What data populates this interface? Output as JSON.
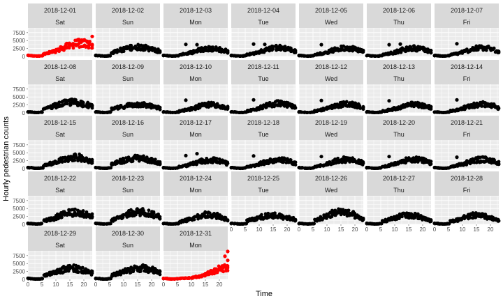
{
  "chart_data": {
    "type": "scatter",
    "xlabel": "Time",
    "ylabel": "Hourly pedestrian counts",
    "xlim": [
      0,
      23
    ],
    "ylim": [
      0,
      9000
    ],
    "x_ticks": [
      0,
      5,
      10,
      15,
      20
    ],
    "y_ticks": [
      0,
      2500,
      5000,
      7500
    ],
    "y_tick_labels": [
      "0",
      "2500",
      "5000",
      "7500"
    ],
    "grid": true,
    "legend": "none",
    "colors": {
      "default": "#000000",
      "highlight": "#ff0000"
    },
    "facet_columns": 7,
    "facets": [
      {
        "date": "2018-12-01",
        "weekday": "Sat",
        "highlight": true,
        "peak_hour": 19,
        "peak_value": 5200,
        "outliers": [
          [
            23,
            6300
          ],
          [
            22,
            4500
          ]
        ]
      },
      {
        "date": "2018-12-02",
        "weekday": "Sun",
        "highlight": false,
        "peak_hour": 15,
        "peak_value": 3700
      },
      {
        "date": "2018-12-03",
        "weekday": "Mon",
        "highlight": false,
        "peak_hour": 17,
        "peak_value": 3700,
        "outliers": [
          [
            8,
            3800
          ],
          [
            12,
            3700
          ]
        ]
      },
      {
        "date": "2018-12-04",
        "weekday": "Tue",
        "highlight": false,
        "peak_hour": 17,
        "peak_value": 4000,
        "outliers": [
          [
            8,
            3900
          ],
          [
            12,
            3800
          ]
        ]
      },
      {
        "date": "2018-12-05",
        "weekday": "Wed",
        "highlight": false,
        "peak_hour": 17,
        "peak_value": 3900,
        "outliers": [
          [
            8,
            3700
          ]
        ]
      },
      {
        "date": "2018-12-06",
        "weekday": "Thu",
        "highlight": false,
        "peak_hour": 17,
        "peak_value": 3800,
        "outliers": [
          [
            8,
            3700
          ],
          [
            12,
            3900
          ]
        ]
      },
      {
        "date": "2018-12-07",
        "weekday": "Fri",
        "highlight": false,
        "peak_hour": 17,
        "peak_value": 3900,
        "outliers": [
          [
            8,
            4000
          ]
        ]
      },
      {
        "date": "2018-12-08",
        "weekday": "Sat",
        "highlight": false,
        "peak_hour": 16,
        "peak_value": 4200
      },
      {
        "date": "2018-12-09",
        "weekday": "Sun",
        "highlight": false,
        "peak_hour": 15,
        "peak_value": 3300
      },
      {
        "date": "2018-12-10",
        "weekday": "Mon",
        "highlight": false,
        "peak_hour": 17,
        "peak_value": 3800,
        "outliers": [
          [
            8,
            4000
          ]
        ]
      },
      {
        "date": "2018-12-11",
        "weekday": "Tue",
        "highlight": false,
        "peak_hour": 17,
        "peak_value": 4300,
        "outliers": [
          [
            8,
            4100
          ]
        ]
      },
      {
        "date": "2018-12-12",
        "weekday": "Wed",
        "highlight": false,
        "peak_hour": 17,
        "peak_value": 4000,
        "outliers": [
          [
            8,
            3900
          ]
        ]
      },
      {
        "date": "2018-12-13",
        "weekday": "Thu",
        "highlight": false,
        "peak_hour": 17,
        "peak_value": 3800,
        "outliers": [
          [
            8,
            3800
          ]
        ]
      },
      {
        "date": "2018-12-14",
        "weekday": "Fri",
        "highlight": false,
        "peak_hour": 17,
        "peak_value": 4000,
        "outliers": [
          [
            8,
            4100
          ]
        ]
      },
      {
        "date": "2018-12-15",
        "weekday": "Sat",
        "highlight": false,
        "peak_hour": 17,
        "peak_value": 4400
      },
      {
        "date": "2018-12-16",
        "weekday": "Sun",
        "highlight": false,
        "peak_hour": 15,
        "peak_value": 4100
      },
      {
        "date": "2018-12-17",
        "weekday": "Mon",
        "highlight": false,
        "peak_hour": 17,
        "peak_value": 3900,
        "outliers": [
          [
            8,
            4100
          ],
          [
            12,
            4700
          ]
        ]
      },
      {
        "date": "2018-12-18",
        "weekday": "Tue",
        "highlight": false,
        "peak_hour": 17,
        "peak_value": 4000,
        "outliers": [
          [
            8,
            4000
          ]
        ]
      },
      {
        "date": "2018-12-19",
        "weekday": "Wed",
        "highlight": false,
        "peak_hour": 17,
        "peak_value": 4200,
        "outliers": [
          [
            8,
            3800
          ]
        ]
      },
      {
        "date": "2018-12-20",
        "weekday": "Thu",
        "highlight": false,
        "peak_hour": 17,
        "peak_value": 4300,
        "outliers": [
          [
            8,
            3800
          ]
        ]
      },
      {
        "date": "2018-12-21",
        "weekday": "Fri",
        "highlight": false,
        "peak_hour": 17,
        "peak_value": 4200,
        "outliers": [
          [
            8,
            3600
          ]
        ]
      },
      {
        "date": "2018-12-22",
        "weekday": "Sat",
        "highlight": false,
        "peak_hour": 17,
        "peak_value": 4600
      },
      {
        "date": "2018-12-23",
        "weekday": "Sun",
        "highlight": false,
        "peak_hour": 16,
        "peak_value": 4900
      },
      {
        "date": "2018-12-24",
        "weekday": "Mon",
        "highlight": false,
        "peak_hour": 16,
        "peak_value": 4500
      },
      {
        "date": "2018-12-25",
        "weekday": "Tue",
        "highlight": false,
        "peak_hour": 15,
        "peak_value": 3500
      },
      {
        "date": "2018-12-26",
        "weekday": "Wed",
        "highlight": false,
        "peak_hour": 15,
        "peak_value": 5800
      },
      {
        "date": "2018-12-27",
        "weekday": "Thu",
        "highlight": false,
        "peak_hour": 15,
        "peak_value": 4200
      },
      {
        "date": "2018-12-28",
        "weekday": "Fri",
        "highlight": false,
        "peak_hour": 15,
        "peak_value": 4100
      },
      {
        "date": "2018-12-29",
        "weekday": "Sat",
        "highlight": false,
        "peak_hour": 16,
        "peak_value": 4300
      },
      {
        "date": "2018-12-30",
        "weekday": "Sun",
        "highlight": false,
        "peak_hour": 16,
        "peak_value": 4400
      },
      {
        "date": "2018-12-31",
        "weekday": "Mon",
        "highlight": true,
        "peak_hour": 23,
        "peak_value": 5500,
        "outliers": [
          [
            22,
            7300
          ],
          [
            23,
            8800
          ],
          [
            23,
            6000
          ]
        ]
      }
    ]
  }
}
